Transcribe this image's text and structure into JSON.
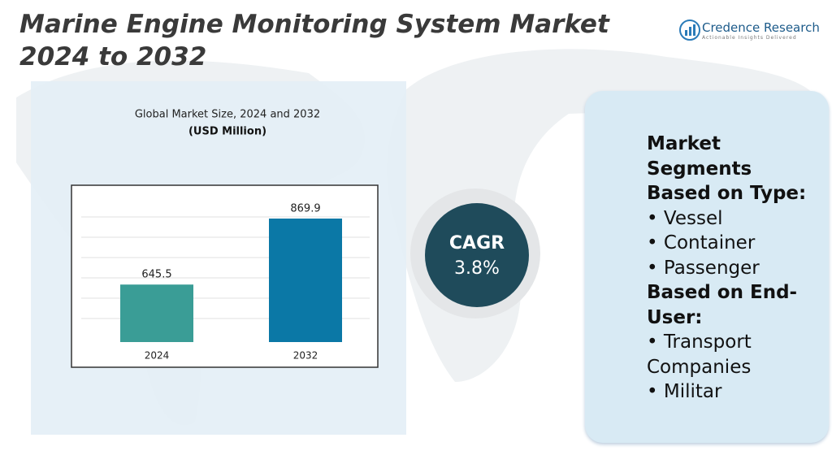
{
  "header": {
    "title": "Marine Engine Monitoring System Market 2024 to 2032",
    "logo_name": "Credence Research",
    "logo_tagline": "Actionable Insights Delivered"
  },
  "chart_data": {
    "type": "bar",
    "title": "Global Market Size, 2024 and 2032",
    "subtitle": "(USD Million)",
    "categories": [
      "2024",
      "2032"
    ],
    "values": [
      645.5,
      869.9
    ],
    "colors": [
      "#3a9d96",
      "#0b78a6"
    ],
    "ylim": [
      450,
      950
    ]
  },
  "cagr": {
    "label": "CAGR",
    "value": "3.8%"
  },
  "segments": {
    "heading": "Market Segments",
    "groups": [
      {
        "title": "Based on Type:",
        "items": [
          "Vessel",
          "Container",
          "Passenger"
        ]
      },
      {
        "title": "Based on End-User:",
        "items": [
          "Transport Companies",
          "Militar"
        ]
      }
    ]
  }
}
